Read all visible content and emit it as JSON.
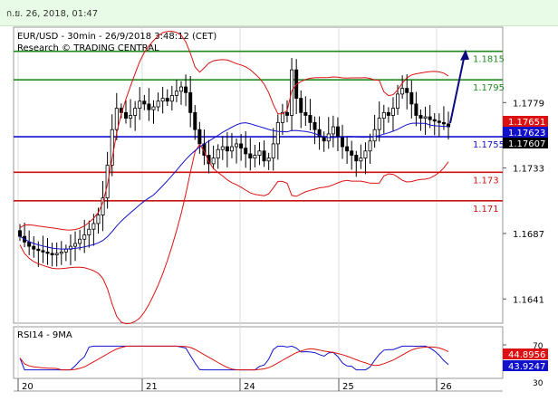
{
  "header": {
    "timestamp": "ก.ย. 26, 2018, 01:47"
  },
  "chart_data": {
    "type": "candlestick",
    "title": "EUR/USD - 30min - 26/9/2018 3:48:12 (CET)",
    "subtitle": "Research © TRADING CENTRAL",
    "price_axis": {
      "ylim": [
        1.1624,
        1.1832
      ],
      "tick_labels": [
        "1.1779",
        "1.1733",
        "1.1687",
        "1.1641"
      ],
      "tick_values": [
        1.1779,
        1.1733,
        1.1687,
        1.1641
      ]
    },
    "x_ticks": [
      "20",
      "21",
      "24",
      "25",
      "26"
    ],
    "levels": [
      {
        "label": "1.1815",
        "value": 1.1815,
        "color": "#1f8a1f"
      },
      {
        "label": "1.1795",
        "value": 1.1795,
        "color": "#1f8a1f"
      },
      {
        "label": "1.1755",
        "value": 1.1755,
        "color": "#1010cc"
      },
      {
        "label": "1.173",
        "value": 1.173,
        "color": "#cc1111"
      },
      {
        "label": "1.171",
        "value": 1.171,
        "color": "#cc1111"
      }
    ],
    "price_badges": [
      {
        "label": "1.17651",
        "value": 1.17651,
        "color": "#dd1111"
      },
      {
        "label": "1.17623",
        "value": 1.17623,
        "color": "#1111cc"
      },
      {
        "label": "1.17607",
        "value": 1.17607,
        "color": "#000000"
      }
    ],
    "candles_close": [
      1.1685,
      1.1681,
      1.1678,
      1.1676,
      1.1675,
      1.1674,
      1.1673,
      1.1672,
      1.1673,
      1.1674,
      1.1676,
      1.1678,
      1.168,
      1.1683,
      1.1686,
      1.169,
      1.1694,
      1.17,
      1.1712,
      1.1735,
      1.176,
      1.1775,
      1.1772,
      1.1768,
      1.177,
      1.1775,
      1.178,
      1.1778,
      1.1774,
      1.1776,
      1.178,
      1.1782,
      1.178,
      1.1784,
      1.1787,
      1.179,
      1.1786,
      1.1772,
      1.176,
      1.175,
      1.1742,
      1.1736,
      1.174,
      1.1746,
      1.1748,
      1.1745,
      1.1748,
      1.175,
      1.1747,
      1.1743,
      1.174,
      1.1742,
      1.1745,
      1.1738,
      1.174,
      1.175,
      1.1765,
      1.1772,
      1.177,
      1.1802,
      1.1782,
      1.1772,
      1.177,
      1.1765,
      1.176,
      1.1755,
      1.1752,
      1.1757,
      1.1762,
      1.1755,
      1.1748,
      1.1745,
      1.1742,
      1.1738,
      1.174,
      1.1745,
      1.1752,
      1.176,
      1.1768,
      1.1772,
      1.177,
      1.1775,
      1.1785,
      1.1789,
      1.1786,
      1.1778,
      1.177,
      1.1768,
      1.1769,
      1.1767,
      1.1766,
      1.1765,
      1.1764,
      1.1762
    ],
    "indicator": {
      "label": "RSI14 - 9MA",
      "ylim": [
        30,
        70
      ],
      "tick_labels": [
        "70",
        "30"
      ],
      "badges": [
        {
          "label": "44.8956",
          "value": 44.8956,
          "color": "#dd1111"
        },
        {
          "label": "43.9247",
          "value": 43.9247,
          "color": "#1111cc"
        }
      ]
    },
    "colors": {
      "candle": "#000000",
      "bollinger": "#dd1111",
      "moving_average": "#1111cc",
      "forecast_arrow": "#0b0b80"
    }
  }
}
